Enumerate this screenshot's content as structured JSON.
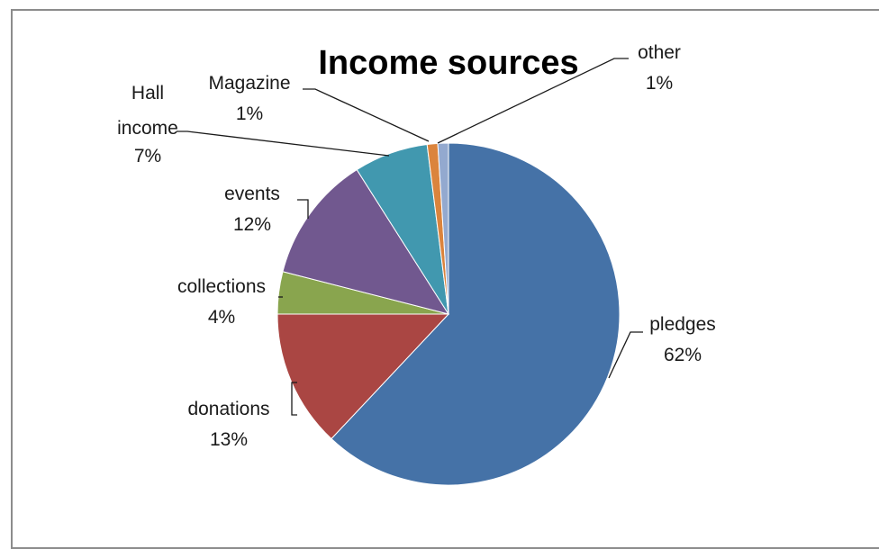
{
  "chart_data": {
    "type": "pie",
    "title": "Income sources",
    "categories": [
      "pledges",
      "donations",
      "collections",
      "events",
      "Hall income",
      "Magazine",
      "other"
    ],
    "values": [
      62,
      13,
      4,
      12,
      7,
      1,
      1
    ],
    "value_labels": [
      "62%",
      "13%",
      "4%",
      "12%",
      "7%",
      "1%",
      "1%"
    ],
    "colors": [
      "#4572A7",
      "#AA4643",
      "#89A54E",
      "#71588F",
      "#4198AF",
      "#DB843D",
      "#93A9CF"
    ],
    "start_angle": "12 o'clock",
    "direction": "clockwise",
    "legend": "none"
  }
}
